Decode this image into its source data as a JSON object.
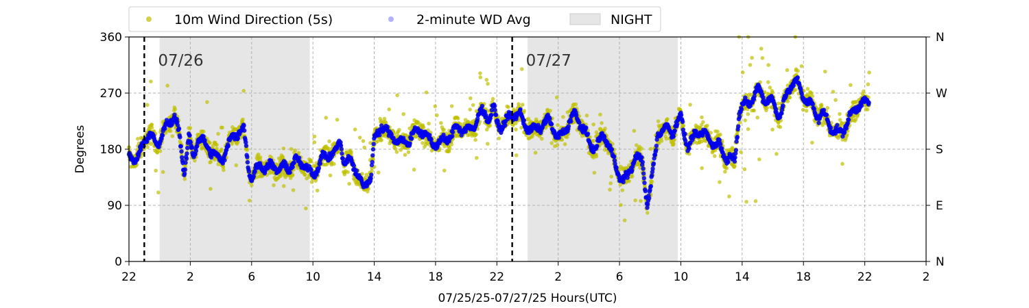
{
  "chart_data": {
    "type": "scatter",
    "xlabel": "07/25/25-07/27/25  Hours(UTC)",
    "ylabel": "Degrees",
    "x_range_hours": [
      22,
      74
    ],
    "ylim": [
      0,
      360
    ],
    "x_ticks": [
      {
        "h": 22,
        "label": "22"
      },
      {
        "h": 26,
        "label": "2"
      },
      {
        "h": 30,
        "label": "6"
      },
      {
        "h": 34,
        "label": "10"
      },
      {
        "h": 38,
        "label": "14"
      },
      {
        "h": 42,
        "label": "18"
      },
      {
        "h": 46,
        "label": "22"
      },
      {
        "h": 50,
        "label": "2"
      },
      {
        "h": 54,
        "label": "6"
      },
      {
        "h": 58,
        "label": "10"
      },
      {
        "h": 62,
        "label": "14"
      },
      {
        "h": 66,
        "label": "18"
      },
      {
        "h": 70,
        "label": "22"
      },
      {
        "h": 74,
        "label": "2"
      }
    ],
    "y_ticks": [
      "0",
      "90",
      "180",
      "270",
      "360"
    ],
    "right_ticks": [
      "N",
      "E",
      "S",
      "W",
      "N"
    ],
    "grid": true,
    "legend_position": "top",
    "legend": {
      "wd5s": "10m Wind Direction (5s)",
      "wd2m": "2-minute WD Avg",
      "night": "NIGHT"
    },
    "night_periods": [
      [
        24.0,
        33.8
      ],
      [
        48.0,
        57.8
      ]
    ],
    "day_markers": [
      {
        "h": 23.0,
        "label": "07/26"
      },
      {
        "h": 47.0,
        "label": "07/27"
      }
    ],
    "series": [
      {
        "name": "10m Wind Direction (5s)",
        "color": "#bfbf00",
        "spread": 28
      },
      {
        "name": "2-minute WD Avg",
        "color": "#0000ee",
        "key_points": [
          [
            22.0,
            185
          ],
          [
            22.5,
            150
          ],
          [
            23.0,
            190
          ],
          [
            23.5,
            205
          ],
          [
            24.0,
            200
          ],
          [
            24.5,
            215
          ],
          [
            25.0,
            222
          ],
          [
            25.3,
            200
          ],
          [
            25.6,
            150
          ],
          [
            25.9,
            210
          ],
          [
            26.2,
            170
          ],
          [
            26.5,
            195
          ],
          [
            27.0,
            175
          ],
          [
            27.5,
            180
          ],
          [
            28.0,
            170
          ],
          [
            28.5,
            185
          ],
          [
            29.0,
            195
          ],
          [
            29.5,
            215
          ],
          [
            29.8,
            160
          ],
          [
            30.0,
            145
          ],
          [
            30.5,
            150
          ],
          [
            31.0,
            140
          ],
          [
            31.5,
            155
          ],
          [
            32.0,
            160
          ],
          [
            32.5,
            150
          ],
          [
            33.0,
            150
          ],
          [
            33.5,
            155
          ],
          [
            34.0,
            150
          ],
          [
            34.5,
            160
          ],
          [
            35.0,
            160
          ],
          [
            35.5,
            175
          ],
          [
            35.8,
            205
          ],
          [
            36.0,
            170
          ],
          [
            36.5,
            160
          ],
          [
            37.0,
            125
          ],
          [
            37.3,
            110
          ],
          [
            37.8,
            150
          ],
          [
            38.0,
            205
          ],
          [
            38.5,
            220
          ],
          [
            39.0,
            190
          ],
          [
            39.5,
            195
          ],
          [
            40.0,
            200
          ],
          [
            40.5,
            205
          ],
          [
            41.0,
            200
          ],
          [
            41.5,
            195
          ],
          [
            42.0,
            200
          ],
          [
            42.5,
            195
          ],
          [
            43.0,
            190
          ],
          [
            43.5,
            215
          ],
          [
            44.0,
            220
          ],
          [
            44.5,
            220
          ],
          [
            45.0,
            230
          ],
          [
            45.5,
            225
          ],
          [
            45.8,
            255
          ],
          [
            46.0,
            230
          ],
          [
            46.5,
            225
          ],
          [
            47.0,
            225
          ],
          [
            47.5,
            230
          ],
          [
            48.0,
            225
          ],
          [
            48.5,
            215
          ],
          [
            49.0,
            210
          ],
          [
            49.5,
            220
          ],
          [
            50.0,
            205
          ],
          [
            50.5,
            220
          ],
          [
            51.0,
            225
          ],
          [
            51.5,
            215
          ],
          [
            52.0,
            200
          ],
          [
            52.5,
            190
          ],
          [
            53.0,
            195
          ],
          [
            53.5,
            165
          ],
          [
            54.0,
            145
          ],
          [
            54.5,
            140
          ],
          [
            55.0,
            160
          ],
          [
            55.5,
            150
          ],
          [
            55.8,
            95
          ],
          [
            56.0,
            120
          ],
          [
            56.5,
            215
          ],
          [
            57.0,
            205
          ],
          [
            57.5,
            200
          ],
          [
            58.0,
            240
          ],
          [
            58.5,
            190
          ],
          [
            59.0,
            200
          ],
          [
            59.5,
            195
          ],
          [
            60.0,
            200
          ],
          [
            60.5,
            195
          ],
          [
            61.0,
            160
          ],
          [
            61.5,
            150
          ],
          [
            61.8,
            240
          ],
          [
            62.0,
            255
          ],
          [
            62.5,
            265
          ],
          [
            63.0,
            270
          ],
          [
            63.5,
            250
          ],
          [
            64.0,
            260
          ],
          [
            64.5,
            245
          ],
          [
            65.0,
            270
          ],
          [
            65.5,
            280
          ],
          [
            66.0,
            270
          ],
          [
            66.5,
            260
          ],
          [
            67.0,
            230
          ],
          [
            67.5,
            220
          ],
          [
            68.0,
            210
          ],
          [
            68.5,
            220
          ],
          [
            69.0,
            225
          ],
          [
            69.5,
            240
          ],
          [
            70.0,
            255
          ],
          [
            70.3,
            270
          ]
        ]
      }
    ]
  }
}
